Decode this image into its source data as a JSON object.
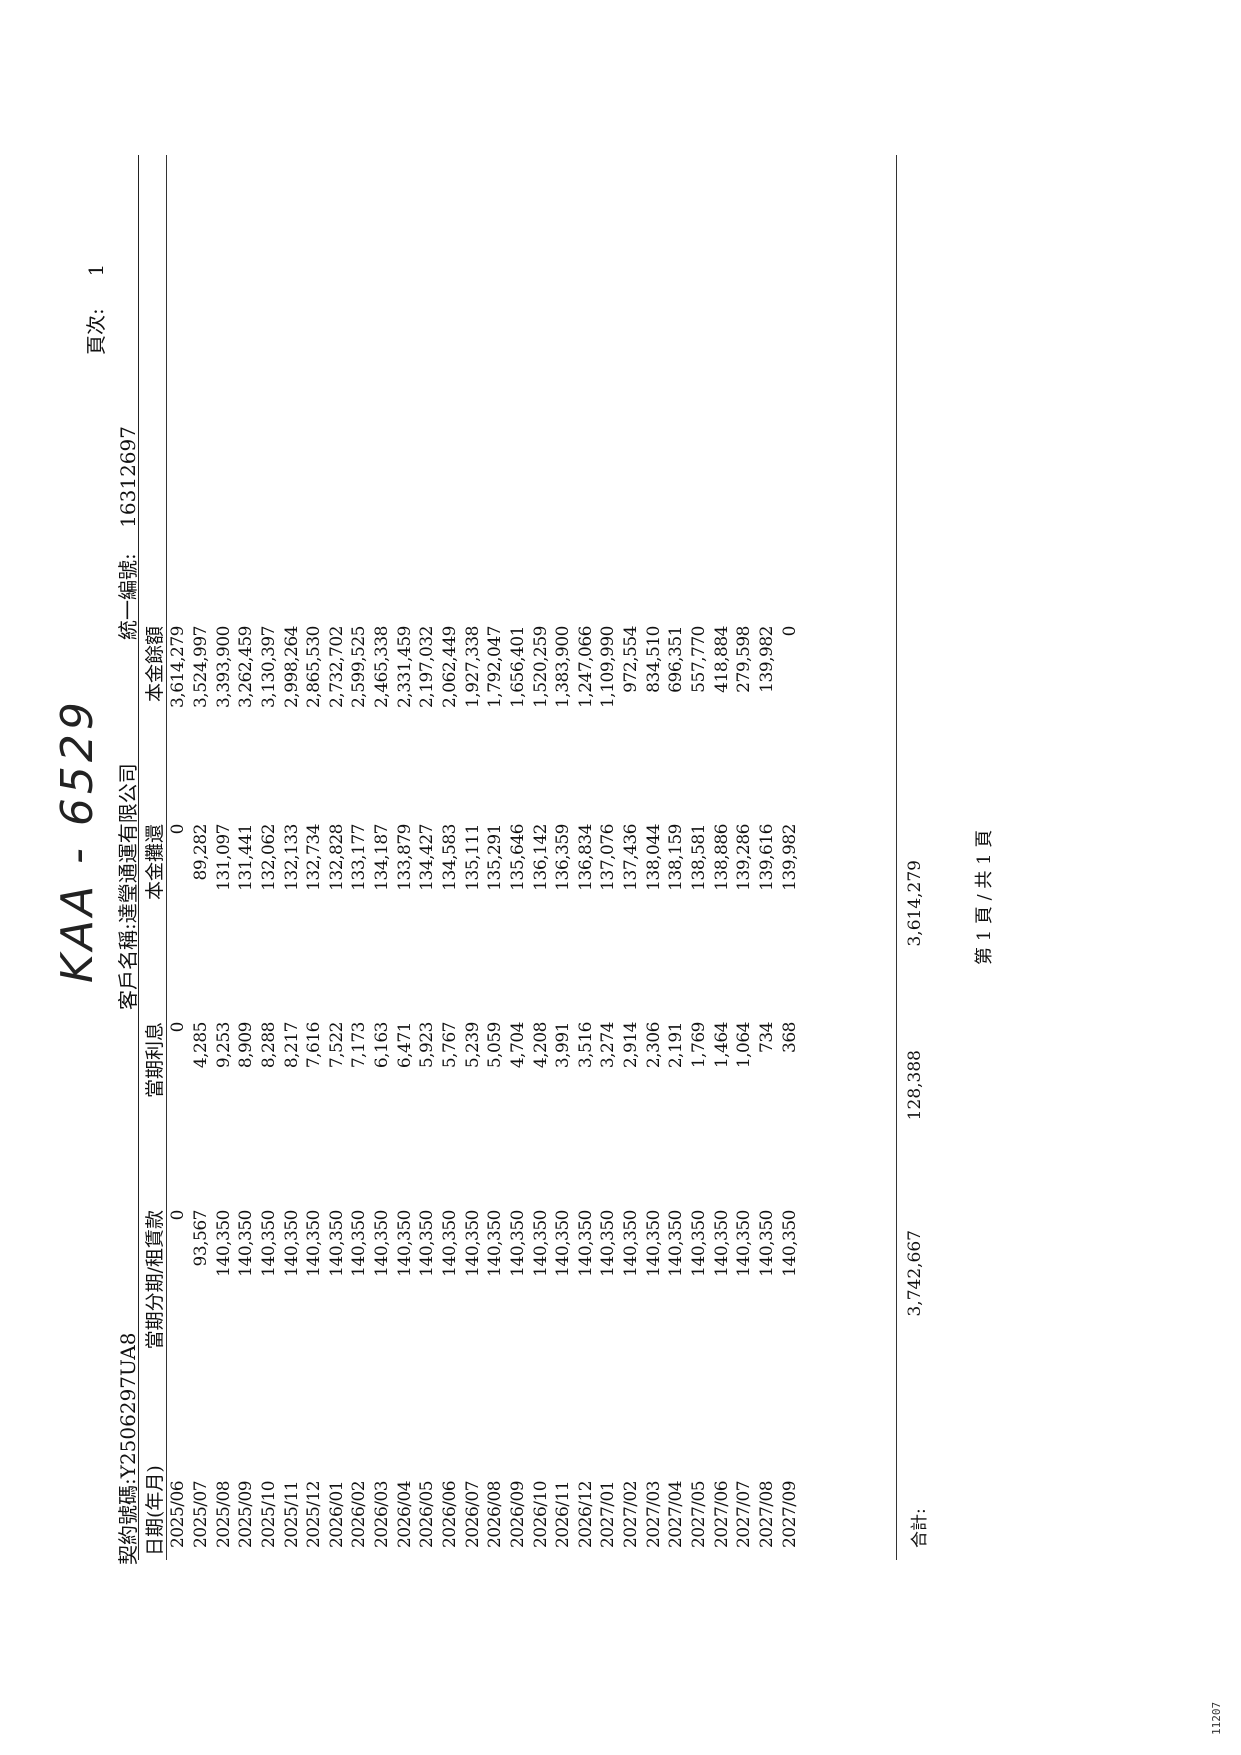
{
  "handwritten_note": "KAA - 6529",
  "header": {
    "contract_label": "契約號碼:",
    "contract_no": "Y2506297UA8",
    "customer_label": "客戶名稱:",
    "customer_name": "達瑩通運有限公司",
    "taxid_label": "統一編號:",
    "taxid": "16312697",
    "page_label": "頁次:",
    "page_no": "1"
  },
  "columns": [
    "日期(年月)",
    "當期分期/租賃款",
    "當期利息",
    "本金攤還",
    "本金餘額"
  ],
  "rows": [
    {
      "date": "2025/06",
      "payment": "0",
      "interest": "0",
      "principal": "0",
      "balance": "3,614,279"
    },
    {
      "date": "2025/07",
      "payment": "93,567",
      "interest": "4,285",
      "principal": "89,282",
      "balance": "3,524,997"
    },
    {
      "date": "2025/08",
      "payment": "140,350",
      "interest": "9,253",
      "principal": "131,097",
      "balance": "3,393,900"
    },
    {
      "date": "2025/09",
      "payment": "140,350",
      "interest": "8,909",
      "principal": "131,441",
      "balance": "3,262,459"
    },
    {
      "date": "2025/10",
      "payment": "140,350",
      "interest": "8,288",
      "principal": "132,062",
      "balance": "3,130,397"
    },
    {
      "date": "2025/11",
      "payment": "140,350",
      "interest": "8,217",
      "principal": "132,133",
      "balance": "2,998,264"
    },
    {
      "date": "2025/12",
      "payment": "140,350",
      "interest": "7,616",
      "principal": "132,734",
      "balance": "2,865,530"
    },
    {
      "date": "2026/01",
      "payment": "140,350",
      "interest": "7,522",
      "principal": "132,828",
      "balance": "2,732,702"
    },
    {
      "date": "2026/02",
      "payment": "140,350",
      "interest": "7,173",
      "principal": "133,177",
      "balance": "2,599,525"
    },
    {
      "date": "2026/03",
      "payment": "140,350",
      "interest": "6,163",
      "principal": "134,187",
      "balance": "2,465,338"
    },
    {
      "date": "2026/04",
      "payment": "140,350",
      "interest": "6,471",
      "principal": "133,879",
      "balance": "2,331,459"
    },
    {
      "date": "2026/05",
      "payment": "140,350",
      "interest": "5,923",
      "principal": "134,427",
      "balance": "2,197,032"
    },
    {
      "date": "2026/06",
      "payment": "140,350",
      "interest": "5,767",
      "principal": "134,583",
      "balance": "2,062,449"
    },
    {
      "date": "2026/07",
      "payment": "140,350",
      "interest": "5,239",
      "principal": "135,111",
      "balance": "1,927,338"
    },
    {
      "date": "2026/08",
      "payment": "140,350",
      "interest": "5,059",
      "principal": "135,291",
      "balance": "1,792,047"
    },
    {
      "date": "2026/09",
      "payment": "140,350",
      "interest": "4,704",
      "principal": "135,646",
      "balance": "1,656,401"
    },
    {
      "date": "2026/10",
      "payment": "140,350",
      "interest": "4,208",
      "principal": "136,142",
      "balance": "1,520,259"
    },
    {
      "date": "2026/11",
      "payment": "140,350",
      "interest": "3,991",
      "principal": "136,359",
      "balance": "1,383,900"
    },
    {
      "date": "2026/12",
      "payment": "140,350",
      "interest": "3,516",
      "principal": "136,834",
      "balance": "1,247,066"
    },
    {
      "date": "2027/01",
      "payment": "140,350",
      "interest": "3,274",
      "principal": "137,076",
      "balance": "1,109,990"
    },
    {
      "date": "2027/02",
      "payment": "140,350",
      "interest": "2,914",
      "principal": "137,436",
      "balance": "972,554"
    },
    {
      "date": "2027/03",
      "payment": "140,350",
      "interest": "2,306",
      "principal": "138,044",
      "balance": "834,510"
    },
    {
      "date": "2027/04",
      "payment": "140,350",
      "interest": "2,191",
      "principal": "138,159",
      "balance": "696,351"
    },
    {
      "date": "2027/05",
      "payment": "140,350",
      "interest": "1,769",
      "principal": "138,581",
      "balance": "557,770"
    },
    {
      "date": "2027/06",
      "payment": "140,350",
      "interest": "1,464",
      "principal": "138,886",
      "balance": "418,884"
    },
    {
      "date": "2027/07",
      "payment": "140,350",
      "interest": "1,064",
      "principal": "139,286",
      "balance": "279,598"
    },
    {
      "date": "2027/08",
      "payment": "140,350",
      "interest": "734",
      "principal": "139,616",
      "balance": "139,982"
    },
    {
      "date": "2027/09",
      "payment": "140,350",
      "interest": "368",
      "principal": "139,982",
      "balance": "0"
    }
  ],
  "totals": {
    "label": "合計:",
    "payment": "3,742,667",
    "interest": "128,388",
    "principal": "3,614,279"
  },
  "footer": "第 1 頁 / 共 1 頁",
  "stamp": "11207"
}
